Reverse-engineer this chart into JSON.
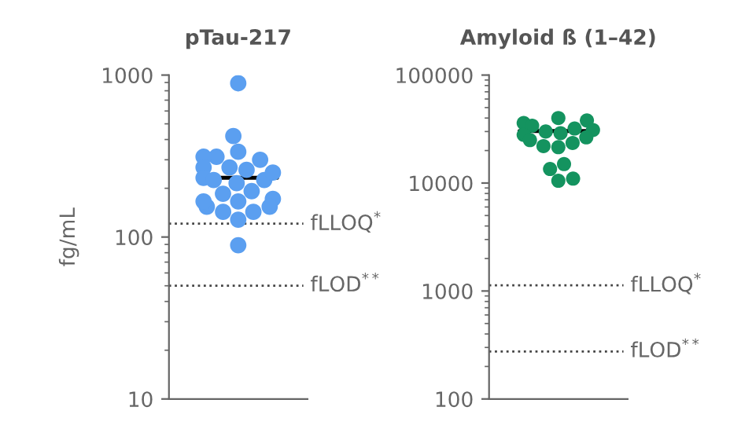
{
  "chart_data": [
    {
      "type": "scatter",
      "title": "pTau-217",
      "ylabel": "fg/mL",
      "categories": [
        null
      ],
      "log": "y",
      "ylim": [
        10,
        1000
      ],
      "yticks": [
        10,
        100,
        1000
      ],
      "series": [
        {
          "color": "#5b9ff0",
          "x": [
            null,
            null,
            null,
            null,
            null,
            null,
            null,
            null,
            null,
            null,
            null,
            null,
            null,
            null,
            null,
            null,
            null,
            null,
            null,
            null,
            null,
            null,
            null,
            null,
            null
          ],
          "values": [
            890,
            420,
            336,
            313,
            313,
            300,
            269,
            269,
            260,
            232,
            225,
            250,
            225,
            215,
            192,
            185,
            166,
            154,
            166,
            172,
            154,
            143,
            143,
            128,
            89
          ]
        }
      ],
      "ref_lines": [
        {
          "axis": "y",
          "value": 232,
          "label": null,
          "color": "#000000",
          "line_style": "solid"
        },
        {
          "axis": "y",
          "value": 121,
          "label": "fLLOQ$^{*}$",
          "color": "#444444",
          "line_style": "dotted"
        },
        {
          "axis": "y",
          "value": 50,
          "label": "fLOD$^{**}$",
          "color": "#444444",
          "line_style": "dotted"
        }
      ]
    },
    {
      "type": "scatter",
      "title": "Amyloid ß (1–42)",
      "categories": [
        null
      ],
      "log": "y",
      "ylim": [
        100,
        100000
      ],
      "yticks": [
        100,
        1000,
        10000,
        100000
      ],
      "series": [
        {
          "color": "#14935f",
          "x": [
            null,
            null,
            null,
            null,
            null,
            null,
            null,
            null,
            null,
            null,
            null,
            null,
            null,
            null,
            null,
            null,
            null,
            null
          ],
          "values": [
            40000,
            38000,
            36000,
            34000,
            32000,
            31000,
            30000,
            29000,
            28000,
            26500,
            25000,
            23500,
            22000,
            21500,
            15000,
            13500,
            11000,
            10500
          ]
        }
      ],
      "ref_lines": [
        {
          "axis": "y",
          "value": 30300,
          "label": null,
          "color": "#000000",
          "line_style": "solid"
        },
        {
          "axis": "y",
          "value": 1130,
          "label": "fLLOQ$^{*}$",
          "color": "#444444",
          "line_style": "dotted"
        },
        {
          "axis": "y",
          "value": 275,
          "label": "fLOD$^{**}$",
          "color": "#444444",
          "line_style": "dotted"
        }
      ]
    }
  ]
}
